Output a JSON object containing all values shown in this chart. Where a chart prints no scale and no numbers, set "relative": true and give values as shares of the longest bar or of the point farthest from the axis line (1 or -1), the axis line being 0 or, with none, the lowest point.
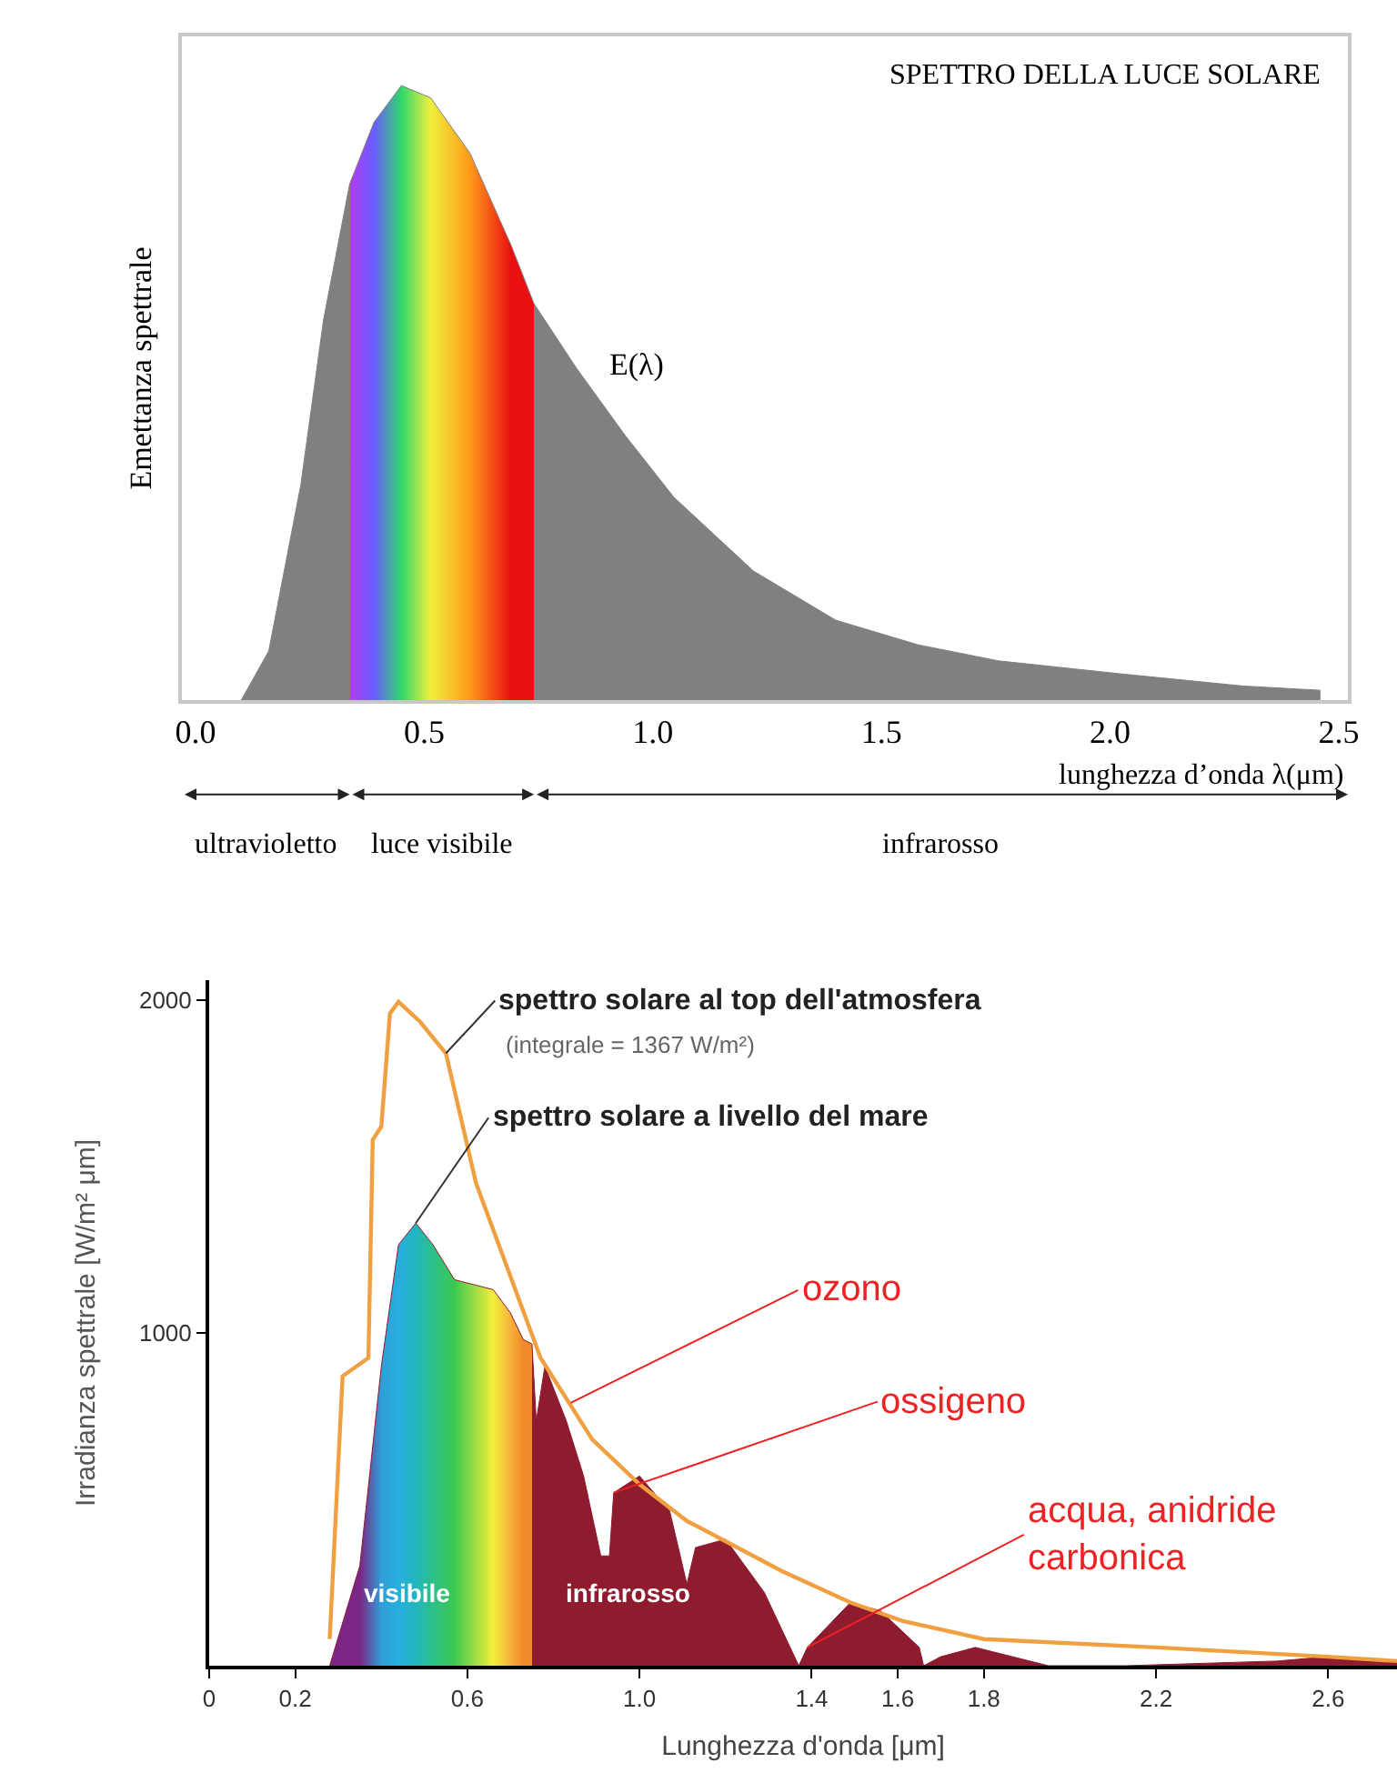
{
  "chart_data": [
    {
      "type": "area",
      "title": "SPETTRO DELLA LUCE SOLARE",
      "xlabel": "lunghezza d’onda λ(μm)",
      "ylabel": "Emettanza spettrale",
      "relative": true,
      "xlim": [
        -0.03,
        2.52
      ],
      "xticks": [
        {
          "value": 0,
          "label": "0.0"
        },
        {
          "value": 0.5,
          "label": "0.5"
        },
        {
          "value": 1,
          "label": "1.0"
        },
        {
          "value": 1.5,
          "label": "1.5"
        },
        {
          "value": 2,
          "label": "2.0"
        },
        {
          "value": 2.5,
          "label": "2.5"
        }
      ],
      "annotations": [
        "ultravioletto",
        "luce visibile",
        "infrarosso"
      ],
      "series": [
        {
          "name": "E(λ)",
          "color": "#808080",
          "x": [
            0.1,
            0.16,
            0.23,
            0.28,
            0.337,
            0.39,
            0.45,
            0.514,
            0.6,
            0.69,
            0.74,
            0.833,
            0.94,
            1.046,
            1.22,
            1.4,
            1.58,
            1.755,
            2.02,
            2.29,
            2.46
          ],
          "values": [
            0,
            0.08,
            0.35,
            0.62,
            0.84,
            0.94,
            1,
            0.98,
            0.89,
            0.74,
            0.645,
            0.54,
            0.43,
            0.33,
            0.21,
            0.13,
            0.09,
            0.064,
            0.043,
            0.023,
            0.016
          ],
          "colors": [
            "#808080",
            "#808080",
            "#808080",
            "#808080",
            "#b43cf0",
            "#6a5cff",
            "#2fd86a",
            "#f0f03c",
            "#ff9a1a",
            "#e81010",
            "#808080",
            "#808080",
            "#808080",
            "#808080",
            "#808080",
            "#808080",
            "#808080",
            "#808080",
            "#808080",
            "#808080",
            "#808080"
          ]
        }
      ]
    },
    {
      "type": "area",
      "xlabel": "Lunghezza d'onda [μm]",
      "ylabel": "Irradianza spettrale [W/m² μm]",
      "xlim": [
        0,
        2.76
      ],
      "ylim": [
        0,
        2060
      ],
      "xticks": [
        0,
        0.2,
        0.6,
        {
          "value": 1,
          "label": "1.0"
        },
        1.4,
        1.6,
        1.8,
        2.2,
        2.6
      ],
      "yticks": [
        1000,
        2000
      ],
      "annotations": [
        "(integrale = 1367 W/m²)",
        "visibile",
        "infrarosso",
        {
          "text": "ozono",
          "x": 0.84,
          "y": 790
        },
        {
          "text": "ossigeno",
          "x": 0.94,
          "y": 520
        },
        {
          "text": "acqua, anidride carbonica",
          "x": 1.39,
          "y": 55
        }
      ],
      "series": [
        {
          "name": "spettro solare a livello del mare",
          "color": "#8e1b2e",
          "x": [
            0.28,
            0.35,
            0.4,
            0.44,
            0.48,
            0.52,
            0.57,
            0.66,
            0.7,
            0.73,
            0.75,
            0.76,
            0.78,
            0.83,
            0.87,
            0.91,
            0.93,
            0.94,
            1.0,
            1.07,
            1.11,
            1.13,
            1.2,
            1.29,
            1.37,
            1.39,
            1.49,
            1.56,
            1.65,
            1.66,
            1.7,
            1.78,
            1.95,
            2.13,
            2.48,
            2.6,
            2.76
          ],
          "values": [
            0,
            300,
            900,
            1265,
            1330,
            1265,
            1160,
            1130,
            1060,
            980,
            967,
            735,
            900,
            735,
            570,
            330,
            330,
            520,
            570,
            465,
            245,
            355,
            380,
            220,
            0,
            55,
            190,
            165,
            55,
            0,
            27,
            55,
            0,
            0,
            14,
            27,
            14
          ],
          "colors": [
            "#7b2585",
            "#7b2585",
            "#2f9fd8",
            "#26aede",
            "#22b5c0",
            "#2cc08a",
            "#3cc850",
            "#f4ee3a",
            "#f7b23a",
            "#f08a2a",
            "#8e1b2e",
            "#8e1b2e",
            "#8e1b2e",
            "#8e1b2e",
            "#8e1b2e",
            "#8e1b2e",
            "#8e1b2e",
            "#8e1b2e",
            "#8e1b2e",
            "#8e1b2e",
            "#8e1b2e",
            "#8e1b2e",
            "#8e1b2e",
            "#8e1b2e",
            "#8e1b2e",
            "#8e1b2e",
            "#8e1b2e",
            "#8e1b2e",
            "#8e1b2e",
            "#8e1b2e",
            "#8e1b2e",
            "#8e1b2e",
            "#8e1b2e",
            "#8e1b2e",
            "#8e1b2e",
            "#8e1b2e",
            "#8e1b2e"
          ]
        },
        {
          "name": "spettro solare al top dell'atmosfera",
          "type": "line",
          "color": "#f0a040",
          "x": [
            0.28,
            0.31,
            0.37,
            0.38,
            0.4,
            0.42,
            0.44,
            0.49,
            0.55,
            0.62,
            0.66,
            0.77,
            0.89,
            1.0,
            1.11,
            1.33,
            1.49,
            1.61,
            1.8,
            2.2,
            2.6,
            2.76
          ],
          "values": [
            80,
            870,
            925,
            1580,
            1620,
            1960,
            1995,
            1935,
            1840,
            1450,
            1310,
            925,
            680,
            545,
            435,
            285,
            190,
            135,
            80,
            55,
            27,
            14
          ]
        }
      ]
    }
  ]
}
